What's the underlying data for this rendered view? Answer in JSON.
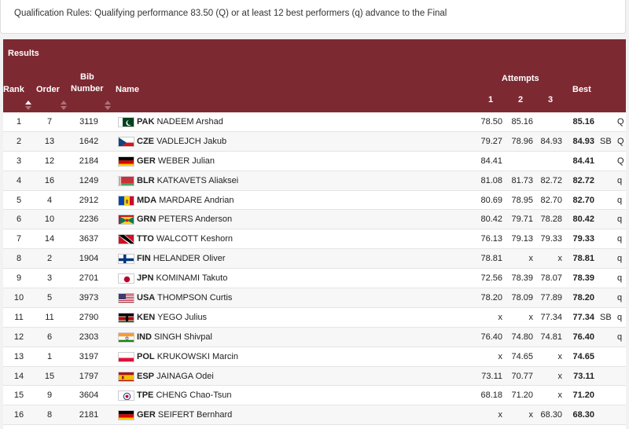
{
  "rules_text": "Qualification Rules: Qualifying performance 83.50 (Q) or at least 12 best performers (q) advance to the Final",
  "results": {
    "title": "Results",
    "columns": {
      "rank": "Rank",
      "order": "Order",
      "bib_line1": "Bib",
      "bib_line2": "Number",
      "name": "Name",
      "attempts": "Attempts",
      "a1": "1",
      "a2": "2",
      "a3": "3",
      "best": "Best"
    },
    "rows": [
      {
        "rank": "1",
        "order": "7",
        "bib": "3119",
        "flag": "pak-flag",
        "country": "PAK",
        "athlete": "NADEEM Arshad",
        "a1": "78.50",
        "a2": "85.16",
        "a3": "",
        "best": "85.16",
        "note": "",
        "q": "Q"
      },
      {
        "rank": "2",
        "order": "13",
        "bib": "1642",
        "flag": "cze-flag",
        "country": "CZE",
        "athlete": "VADLEJCH Jakub",
        "a1": "79.27",
        "a2": "78.96",
        "a3": "84.93",
        "best": "84.93",
        "note": "SB",
        "q": "Q"
      },
      {
        "rank": "3",
        "order": "12",
        "bib": "2184",
        "flag": "ger-flag",
        "country": "GER",
        "athlete": "WEBER Julian",
        "a1": "84.41",
        "a2": "",
        "a3": "",
        "best": "84.41",
        "note": "",
        "q": "Q"
      },
      {
        "rank": "4",
        "order": "16",
        "bib": "1249",
        "flag": "blr-flag",
        "country": "BLR",
        "athlete": "KATKAVETS Aliaksei",
        "a1": "81.08",
        "a2": "81.73",
        "a3": "82.72",
        "best": "82.72",
        "note": "",
        "q": "q"
      },
      {
        "rank": "5",
        "order": "4",
        "bib": "2912",
        "flag": "mda-flag",
        "country": "MDA",
        "athlete": "MARDARE Andrian",
        "a1": "80.69",
        "a2": "78.95",
        "a3": "82.70",
        "best": "82.70",
        "note": "",
        "q": "q"
      },
      {
        "rank": "6",
        "order": "10",
        "bib": "2236",
        "flag": "grn-flag",
        "country": "GRN",
        "athlete": "PETERS Anderson",
        "a1": "80.42",
        "a2": "79.71",
        "a3": "78.28",
        "best": "80.42",
        "note": "",
        "q": "q"
      },
      {
        "rank": "7",
        "order": "14",
        "bib": "3637",
        "flag": "tto-flag",
        "country": "TTO",
        "athlete": "WALCOTT Keshorn",
        "a1": "76.13",
        "a2": "79.13",
        "a3": "79.33",
        "best": "79.33",
        "note": "",
        "q": "q"
      },
      {
        "rank": "8",
        "order": "2",
        "bib": "1904",
        "flag": "fin-flag",
        "country": "FIN",
        "athlete": "HELANDER Oliver",
        "a1": "78.81",
        "a2": "x",
        "a3": "x",
        "best": "78.81",
        "note": "",
        "q": "q"
      },
      {
        "rank": "9",
        "order": "3",
        "bib": "2701",
        "flag": "jpn-flag",
        "country": "JPN",
        "athlete": "KOMINAMI Takuto",
        "a1": "72.56",
        "a2": "78.39",
        "a3": "78.07",
        "best": "78.39",
        "note": "",
        "q": "q"
      },
      {
        "rank": "10",
        "order": "5",
        "bib": "3973",
        "flag": "usa-flag",
        "country": "USA",
        "athlete": "THOMPSON Curtis",
        "a1": "78.20",
        "a2": "78.09",
        "a3": "77.89",
        "best": "78.20",
        "note": "",
        "q": "q"
      },
      {
        "rank": "11",
        "order": "11",
        "bib": "2790",
        "flag": "ken-flag",
        "country": "KEN",
        "athlete": "YEGO Julius",
        "a1": "x",
        "a2": "x",
        "a3": "77.34",
        "best": "77.34",
        "note": "SB",
        "q": "q"
      },
      {
        "rank": "12",
        "order": "6",
        "bib": "2303",
        "flag": "ind-flag",
        "country": "IND",
        "athlete": "SINGH Shivpal",
        "a1": "76.40",
        "a2": "74.80",
        "a3": "74.81",
        "best": "76.40",
        "note": "",
        "q": "q"
      },
      {
        "rank": "13",
        "order": "1",
        "bib": "3197",
        "flag": "pol-flag",
        "country": "POL",
        "athlete": "KRUKOWSKI Marcin",
        "a1": "x",
        "a2": "74.65",
        "a3": "x",
        "best": "74.65",
        "note": "",
        "q": ""
      },
      {
        "rank": "14",
        "order": "15",
        "bib": "1797",
        "flag": "esp-flag",
        "country": "ESP",
        "athlete": "JAINAGA Odei",
        "a1": "73.11",
        "a2": "70.77",
        "a3": "x",
        "best": "73.11",
        "note": "",
        "q": ""
      },
      {
        "rank": "15",
        "order": "9",
        "bib": "3604",
        "flag": "tpe-flag",
        "country": "TPE",
        "athlete": "CHENG Chao-Tsun",
        "a1": "68.18",
        "a2": "71.20",
        "a3": "x",
        "best": "71.20",
        "note": "",
        "q": ""
      },
      {
        "rank": "16",
        "order": "8",
        "bib": "2181",
        "flag": "ger-flag",
        "country": "GER",
        "athlete": "SEIFERT Bernhard",
        "a1": "x",
        "a2": "x",
        "a3": "68.30",
        "best": "68.30",
        "note": "",
        "q": ""
      }
    ]
  },
  "colors": {
    "header_bg": "#7d2932",
    "header_text": "#ffffff",
    "row_alt": "#f7f7f7"
  }
}
